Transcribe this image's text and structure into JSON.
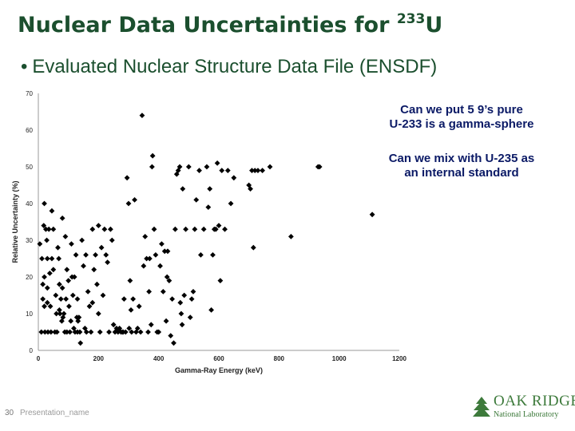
{
  "slide": {
    "title_main": "Nuclear Data Uncertainties for ",
    "title_sup": "233",
    "title_element": "U",
    "bullet_symbol": "•",
    "bullet_text": "Evaluated Nuclear Structure Data File (ENSDF)",
    "note1_line1": "Can we put 5 9’s pure",
    "note1_line2": "U-233 is a gamma-sphere",
    "note2_line1": "Can we mix with U-235 as",
    "note2_line2": "an internal standard",
    "page_number": "30",
    "footer_name": "Presentation_name",
    "logo_top": "OAK RIDGE",
    "logo_bottom": "National Laboratory"
  },
  "colors": {
    "title": "#1b4f2e",
    "note": "#0b1a66",
    "marker": "#000000",
    "logo": "#3d7a3b"
  },
  "chart_data": {
    "type": "scatter",
    "title": "",
    "xlabel": "Gamma-Ray Energy (keV)",
    "ylabel": "Relative Uncertainty (%)",
    "xlim": [
      0,
      1200
    ],
    "ylim": [
      0,
      70
    ],
    "xticks": [
      0,
      200,
      400,
      600,
      800,
      1000,
      1200
    ],
    "yticks": [
      0,
      10,
      20,
      30,
      40,
      50,
      60,
      70
    ],
    "grid": false,
    "legend": "none",
    "marker": "diamond",
    "points": [
      [
        5,
        29
      ],
      [
        10,
        5
      ],
      [
        12,
        25
      ],
      [
        15,
        18
      ],
      [
        15,
        14
      ],
      [
        18,
        34
      ],
      [
        20,
        40
      ],
      [
        20,
        20
      ],
      [
        20,
        12
      ],
      [
        22,
        5
      ],
      [
        25,
        33
      ],
      [
        28,
        30
      ],
      [
        30,
        25
      ],
      [
        30,
        17
      ],
      [
        30,
        13
      ],
      [
        32,
        5
      ],
      [
        35,
        33
      ],
      [
        38,
        21
      ],
      [
        40,
        12
      ],
      [
        42,
        5
      ],
      [
        45,
        38
      ],
      [
        45,
        25
      ],
      [
        50,
        33
      ],
      [
        50,
        22
      ],
      [
        55,
        5
      ],
      [
        58,
        15
      ],
      [
        60,
        10
      ],
      [
        62,
        5
      ],
      [
        65,
        28
      ],
      [
        68,
        25
      ],
      [
        70,
        18
      ],
      [
        70,
        11
      ],
      [
        72,
        10
      ],
      [
        75,
        14
      ],
      [
        78,
        8
      ],
      [
        80,
        36
      ],
      [
        80,
        17
      ],
      [
        82,
        9
      ],
      [
        85,
        10
      ],
      [
        88,
        5
      ],
      [
        90,
        31
      ],
      [
        92,
        14
      ],
      [
        95,
        22
      ],
      [
        95,
        5
      ],
      [
        100,
        19
      ],
      [
        102,
        12
      ],
      [
        105,
        5
      ],
      [
        108,
        8
      ],
      [
        110,
        29
      ],
      [
        112,
        20
      ],
      [
        115,
        15
      ],
      [
        118,
        6
      ],
      [
        120,
        20
      ],
      [
        122,
        5
      ],
      [
        125,
        26
      ],
      [
        128,
        9
      ],
      [
        130,
        14
      ],
      [
        130,
        5
      ],
      [
        132,
        8
      ],
      [
        135,
        9
      ],
      [
        138,
        5
      ],
      [
        140,
        2
      ],
      [
        145,
        30
      ],
      [
        150,
        23
      ],
      [
        155,
        6
      ],
      [
        158,
        26
      ],
      [
        160,
        5
      ],
      [
        165,
        16
      ],
      [
        170,
        12
      ],
      [
        175,
        5
      ],
      [
        180,
        33
      ],
      [
        180,
        13
      ],
      [
        185,
        22
      ],
      [
        190,
        26
      ],
      [
        195,
        18
      ],
      [
        200,
        34
      ],
      [
        200,
        10
      ],
      [
        205,
        5
      ],
      [
        210,
        28
      ],
      [
        215,
        15
      ],
      [
        220,
        33
      ],
      [
        225,
        26
      ],
      [
        230,
        24
      ],
      [
        235,
        5
      ],
      [
        240,
        33
      ],
      [
        245,
        30
      ],
      [
        250,
        7
      ],
      [
        255,
        5
      ],
      [
        260,
        6
      ],
      [
        265,
        5
      ],
      [
        270,
        6
      ],
      [
        275,
        5
      ],
      [
        280,
        5
      ],
      [
        282,
        5
      ],
      [
        285,
        14
      ],
      [
        290,
        5
      ],
      [
        295,
        47
      ],
      [
        300,
        40
      ],
      [
        302,
        6
      ],
      [
        305,
        19
      ],
      [
        308,
        11
      ],
      [
        310,
        5
      ],
      [
        315,
        14
      ],
      [
        320,
        41
      ],
      [
        325,
        5
      ],
      [
        330,
        6
      ],
      [
        335,
        12
      ],
      [
        340,
        5
      ],
      [
        345,
        64
      ],
      [
        350,
        23
      ],
      [
        355,
        31
      ],
      [
        360,
        25
      ],
      [
        365,
        5
      ],
      [
        368,
        16
      ],
      [
        370,
        25
      ],
      [
        375,
        7
      ],
      [
        378,
        50
      ],
      [
        380,
        53
      ],
      [
        385,
        33
      ],
      [
        390,
        26
      ],
      [
        395,
        5
      ],
      [
        400,
        5
      ],
      [
        405,
        23
      ],
      [
        410,
        29
      ],
      [
        415,
        16
      ],
      [
        420,
        27
      ],
      [
        425,
        8
      ],
      [
        428,
        20
      ],
      [
        430,
        27
      ],
      [
        435,
        19
      ],
      [
        440,
        4
      ],
      [
        445,
        14
      ],
      [
        450,
        2
      ],
      [
        455,
        33
      ],
      [
        460,
        48
      ],
      [
        465,
        49
      ],
      [
        470,
        50
      ],
      [
        472,
        13
      ],
      [
        475,
        10
      ],
      [
        478,
        7
      ],
      [
        480,
        44
      ],
      [
        485,
        15
      ],
      [
        490,
        33
      ],
      [
        500,
        50
      ],
      [
        505,
        9
      ],
      [
        510,
        14
      ],
      [
        515,
        16
      ],
      [
        520,
        33
      ],
      [
        525,
        41
      ],
      [
        535,
        49
      ],
      [
        540,
        26
      ],
      [
        550,
        33
      ],
      [
        560,
        50
      ],
      [
        565,
        39
      ],
      [
        570,
        44
      ],
      [
        575,
        11
      ],
      [
        580,
        26
      ],
      [
        585,
        33
      ],
      [
        590,
        33
      ],
      [
        595,
        51
      ],
      [
        600,
        34
      ],
      [
        605,
        19
      ],
      [
        610,
        49
      ],
      [
        620,
        33
      ],
      [
        630,
        49
      ],
      [
        640,
        40
      ],
      [
        650,
        47
      ],
      [
        700,
        45
      ],
      [
        705,
        44
      ],
      [
        710,
        49
      ],
      [
        715,
        28
      ],
      [
        720,
        49
      ],
      [
        730,
        49
      ],
      [
        745,
        49
      ],
      [
        770,
        50
      ],
      [
        840,
        31
      ],
      [
        930,
        50
      ],
      [
        935,
        50
      ],
      [
        1110,
        37
      ]
    ]
  }
}
